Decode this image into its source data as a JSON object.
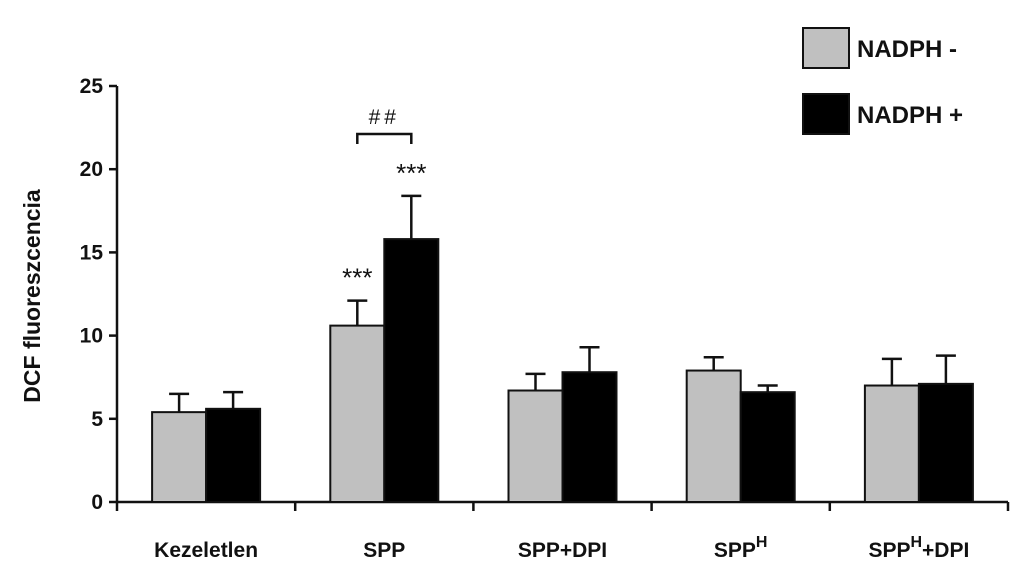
{
  "chart_data": {
    "type": "bar",
    "title": "",
    "xlabel": "",
    "ylabel": "DCF fluoreszcencia",
    "ylim": [
      0,
      25
    ],
    "yticks": [
      "0",
      "5",
      "10",
      "15",
      "20",
      "25"
    ],
    "ytick_values": [
      0,
      5,
      10,
      15,
      20,
      25
    ],
    "grid": false,
    "legend_position": "top-right",
    "categories": [
      {
        "base": "Kezeletlen",
        "sup": "",
        "suffix": ""
      },
      {
        "base": "SPP",
        "sup": "",
        "suffix": ""
      },
      {
        "base": "SPP+DPI",
        "sup": "",
        "suffix": ""
      },
      {
        "base": "SPP",
        "sup": "H",
        "suffix": ""
      },
      {
        "base": "SPP",
        "sup": "H",
        "suffix": "+DPI"
      }
    ],
    "series": [
      {
        "name": "NADPH -",
        "color": "#c0c0c0",
        "values": [
          5.4,
          10.6,
          6.7,
          7.9,
          7.0
        ],
        "errors": [
          1.1,
          1.5,
          1.0,
          0.8,
          1.6
        ]
      },
      {
        "name": "NADPH +",
        "color": "#000000",
        "values": [
          5.6,
          15.8,
          7.8,
          6.6,
          7.1
        ],
        "errors": [
          1.0,
          2.6,
          1.5,
          0.4,
          1.7
        ]
      }
    ],
    "annotations": [
      {
        "category": 1,
        "series": 0,
        "text": "***"
      },
      {
        "category": 1,
        "series": 1,
        "text": "***"
      }
    ],
    "bracket": {
      "category": 1,
      "text": "##"
    }
  }
}
